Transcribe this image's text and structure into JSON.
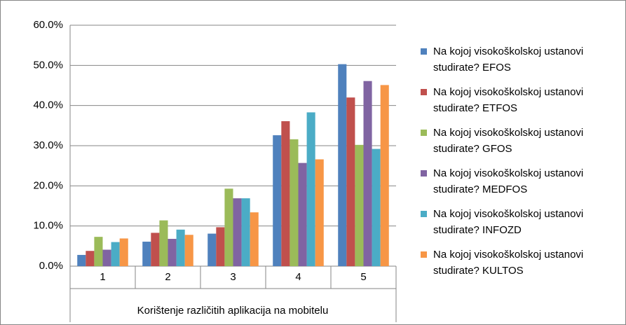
{
  "chart_data": {
    "type": "bar",
    "categories": [
      "1",
      "2",
      "3",
      "4",
      "5"
    ],
    "x_label": "Korištenje različitih aplikacija na mobitelu",
    "series": [
      {
        "name": "Na kojoj visokoškolskoj ustanovi studirate? EFOS",
        "color": "#4f81bd",
        "values": [
          2.8,
          6.1,
          8.1,
          32.6,
          50.3
        ]
      },
      {
        "name": "Na kojoj visokoškolskoj ustanovi studirate? ETFOS",
        "color": "#c0504d",
        "values": [
          3.8,
          8.3,
          9.7,
          36.1,
          42.0
        ]
      },
      {
        "name": "Na kojoj visokoškolskoj ustanovi studirate? GFOS",
        "color": "#9bbb59",
        "values": [
          7.3,
          11.4,
          19.3,
          31.6,
          30.2
        ]
      },
      {
        "name": "Na kojoj visokoškolskoj ustanovi studirate? MEDFOS",
        "color": "#8064a2",
        "values": [
          4.1,
          6.8,
          16.9,
          25.7,
          46.1
        ]
      },
      {
        "name": "Na kojoj visokoškolskoj ustanovi studirate? INFOZD",
        "color": "#4bacc6",
        "values": [
          6.0,
          9.1,
          16.9,
          38.3,
          29.2
        ]
      },
      {
        "name": "Na kojoj visokoškolskoj ustanovi studirate? KULTOS",
        "color": "#f79646",
        "values": [
          6.9,
          7.8,
          13.4,
          26.6,
          45.1
        ]
      }
    ],
    "ylim": [
      0,
      60
    ],
    "yticks": [
      {
        "value": 0,
        "label": "0.0%"
      },
      {
        "value": 10,
        "label": "10.0%"
      },
      {
        "value": 20,
        "label": "20.0%"
      },
      {
        "value": 30,
        "label": "30.0%"
      },
      {
        "value": 40,
        "label": "40.0%"
      },
      {
        "value": 50,
        "label": "50.0%"
      },
      {
        "value": 60,
        "label": "60.0%"
      }
    ],
    "grid": true,
    "legend": "right"
  }
}
